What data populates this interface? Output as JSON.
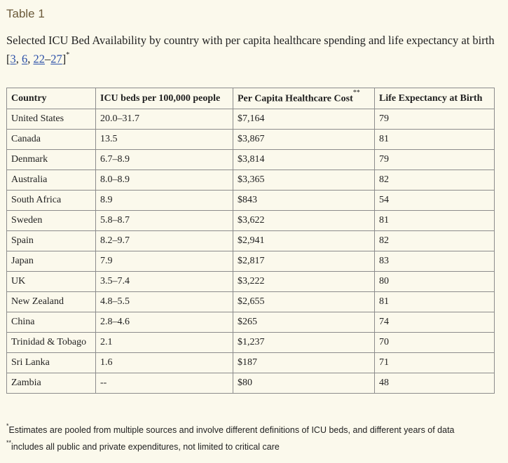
{
  "table_label": "Table 1",
  "caption": {
    "text": "Selected ICU Bed Availability by country with per capita healthcare spending and life expectancy at birth [",
    "refs": [
      "3",
      "6",
      "22",
      "27"
    ],
    "sep1": ", ",
    "sep2": ", ",
    "range_sep": "–",
    "close": "]",
    "marker": "*"
  },
  "table": {
    "headers": [
      "Country",
      "ICU beds per 100,000 people",
      "Per Capita Healthcare Cost",
      "Life Expectancy at Birth"
    ],
    "header_marker": "**",
    "rows": [
      [
        "United States",
        "20.0–31.7",
        "$7,164",
        "79"
      ],
      [
        "Canada",
        "13.5",
        "$3,867",
        "81"
      ],
      [
        "Denmark",
        "6.7–8.9",
        "$3,814",
        "79"
      ],
      [
        "Australia",
        "8.0–8.9",
        "$3,365",
        "82"
      ],
      [
        "South Africa",
        "8.9",
        "$843",
        "54"
      ],
      [
        "Sweden",
        "5.8–8.7",
        "$3,622",
        "81"
      ],
      [
        "Spain",
        "8.2–9.7",
        "$2,941",
        "82"
      ],
      [
        "Japan",
        "7.9",
        "$2,817",
        "83"
      ],
      [
        "UK",
        "3.5–7.4",
        "$3,222",
        "80"
      ],
      [
        "New Zealand",
        "4.8–5.5",
        "$2,655",
        "81"
      ],
      [
        "China",
        "2.8–4.6",
        "$265",
        "74"
      ],
      [
        "Trinidad & Tobago",
        "2.1",
        "$1,237",
        "70"
      ],
      [
        "Sri Lanka",
        "1.6",
        "$187",
        "71"
      ],
      [
        "Zambia",
        "--",
        "$80",
        "48"
      ]
    ]
  },
  "footnotes": [
    {
      "marker": "*",
      "text": "Estimates are pooled from multiple sources and involve different definitions of ICU beds, and different years of data"
    },
    {
      "marker": "**",
      "text": "includes all public and private expenditures, not limited to critical care"
    }
  ],
  "colors": {
    "background": "#fbf9ec",
    "label": "#6b5a3a",
    "link": "#2a4fa8",
    "border": "#8c8c8c"
  }
}
